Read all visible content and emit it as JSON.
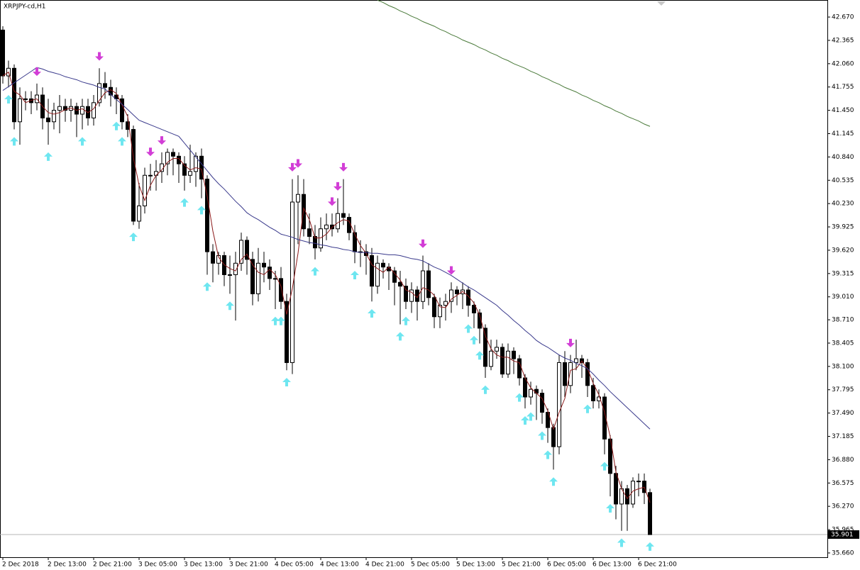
{
  "chart_data": {
    "type": "candlestick",
    "title": "XRPJPY-cd,H1",
    "categories": [
      "2 Dec 2018",
      null,
      null,
      null,
      null,
      null,
      null,
      null,
      "2 Dec 13:00",
      null,
      null,
      null,
      null,
      null,
      null,
      null,
      "2 Dec 21:00",
      null,
      null,
      null,
      null,
      null,
      null,
      null,
      "3 Dec 05:00",
      null,
      null,
      null,
      null,
      null,
      null,
      null,
      "3 Dec 13:00",
      null,
      null,
      null,
      null,
      null,
      null,
      null,
      "3 Dec 21:00",
      null,
      null,
      null,
      null,
      null,
      null,
      null,
      "4 Dec 05:00",
      null,
      null,
      null,
      null,
      null,
      null,
      null,
      "4 Dec 13:00",
      null,
      null,
      null,
      null,
      null,
      null,
      null,
      "4 Dec 21:00",
      null,
      null,
      null,
      null,
      null,
      null,
      null,
      "5 Dec 05:00",
      null,
      null,
      null,
      null,
      null,
      null,
      null,
      "5 Dec 13:00",
      null,
      null,
      null,
      null,
      null,
      null,
      null,
      "5 Dec 21:00",
      null,
      null,
      null,
      null,
      null,
      null,
      null,
      "6 Dec 05:00",
      null,
      null,
      null,
      null,
      null,
      null,
      null,
      "6 Dec 13:00",
      null,
      null,
      null,
      null,
      null,
      null,
      null,
      "6 Dec 21:00",
      null,
      null
    ],
    "open": [
      42.5,
      41.9,
      42.0,
      41.3,
      41.6,
      41.6,
      41.55,
      41.65,
      41.35,
      41.3,
      41.45,
      41.5,
      41.45,
      41.5,
      41.4,
      41.5,
      41.35,
      41.55,
      41.8,
      41.75,
      41.65,
      41.6,
      41.3,
      41.2,
      40.0,
      40.2,
      40.6,
      40.6,
      40.65,
      40.75,
      40.9,
      40.85,
      40.75,
      40.6,
      40.65,
      40.85,
      40.55,
      39.6,
      39.45,
      39.55,
      39.3,
      39.3,
      39.45,
      39.75,
      39.5,
      39.05,
      39.45,
      39.4,
      39.25,
      39.25,
      38.95,
      38.15,
      40.25,
      40.35,
      39.9,
      39.8,
      39.65,
      39.9,
      39.95,
      39.9,
      40.1,
      40.05,
      39.85,
      39.6,
      39.6,
      39.55,
      39.15,
      39.45,
      39.4,
      39.35,
      39.2,
      39.15,
      38.95,
      39.1,
      38.95,
      39.35,
      39.0,
      38.75,
      38.9,
      38.95,
      39.1,
      39.05,
      39.1,
      38.9,
      38.8,
      38.6,
      38.1,
      38.3,
      38.35,
      38.0,
      38.3,
      38.2,
      37.95,
      37.7,
      37.8,
      37.75,
      37.5,
      37.3,
      37.05,
      38.15,
      37.85,
      38.15,
      38.2,
      38.15,
      37.85,
      37.65,
      37.7,
      37.15,
      36.7,
      36.3,
      36.5,
      36.3,
      36.6,
      36.6,
      36.45
    ],
    "high": [
      42.55,
      42.1,
      42.05,
      41.75,
      41.7,
      41.7,
      41.8,
      41.75,
      41.6,
      41.55,
      41.65,
      41.6,
      41.6,
      41.55,
      41.6,
      41.6,
      41.65,
      42.0,
      41.95,
      41.85,
      41.75,
      41.65,
      41.4,
      41.25,
      40.5,
      40.7,
      40.75,
      40.8,
      40.9,
      40.95,
      40.95,
      40.9,
      40.85,
      41.0,
      40.9,
      40.95,
      40.6,
      39.7,
      39.6,
      39.6,
      39.55,
      39.6,
      39.85,
      39.8,
      39.6,
      39.65,
      39.6,
      39.5,
      39.35,
      39.4,
      39.05,
      40.55,
      40.6,
      40.55,
      40.1,
      39.95,
      40.05,
      40.1,
      40.1,
      40.3,
      40.55,
      40.1,
      39.95,
      39.75,
      39.7,
      39.65,
      39.55,
      39.5,
      39.45,
      39.4,
      39.35,
      39.25,
      39.2,
      39.15,
      39.55,
      39.45,
      39.05,
      39.0,
      39.05,
      39.2,
      39.15,
      39.2,
      39.15,
      38.95,
      38.85,
      38.65,
      38.45,
      38.45,
      38.4,
      38.4,
      38.35,
      38.25,
      38.0,
      37.9,
      37.85,
      37.8,
      37.55,
      37.35,
      38.25,
      38.3,
      38.25,
      38.45,
      38.25,
      38.2,
      37.95,
      37.8,
      37.75,
      37.2,
      36.8,
      36.6,
      36.55,
      36.65,
      36.7,
      36.7,
      36.5
    ],
    "low": [
      41.8,
      41.75,
      41.2,
      41.0,
      41.45,
      41.4,
      41.45,
      41.2,
      41.0,
      41.2,
      41.15,
      41.3,
      41.3,
      41.1,
      41.2,
      41.25,
      41.25,
      41.5,
      41.6,
      41.5,
      41.4,
      41.2,
      41.1,
      39.95,
      39.9,
      40.1,
      40.4,
      40.4,
      40.5,
      40.6,
      40.6,
      40.5,
      40.4,
      40.5,
      40.45,
      40.3,
      39.3,
      39.2,
      39.3,
      39.15,
      39.05,
      38.7,
      39.35,
      39.3,
      38.9,
      38.95,
      39.2,
      39.1,
      38.85,
      38.85,
      38.05,
      38.0,
      39.7,
      39.8,
      39.7,
      39.5,
      39.6,
      39.75,
      39.8,
      39.85,
      39.95,
      39.75,
      39.45,
      39.4,
      39.3,
      38.95,
      39.05,
      39.25,
      39.1,
      38.9,
      38.65,
      38.85,
      38.8,
      38.7,
      38.85,
      38.9,
      38.6,
      38.6,
      38.7,
      38.8,
      38.9,
      38.85,
      38.75,
      38.6,
      38.4,
      37.95,
      38.05,
      38.2,
      37.95,
      37.95,
      38.0,
      37.85,
      37.55,
      37.6,
      37.4,
      37.35,
      37.1,
      36.75,
      36.95,
      37.7,
      37.75,
      38.05,
      37.95,
      37.7,
      37.55,
      37.55,
      36.95,
      36.4,
      36.1,
      35.95,
      35.95,
      36.25,
      36.4,
      36.3,
      35.9
    ],
    "close": [
      41.9,
      42.0,
      41.3,
      41.6,
      41.6,
      41.55,
      41.65,
      41.35,
      41.3,
      41.45,
      41.5,
      41.45,
      41.5,
      41.4,
      41.5,
      41.35,
      41.55,
      41.8,
      41.75,
      41.65,
      41.6,
      41.3,
      41.2,
      40.0,
      40.2,
      40.6,
      40.6,
      40.65,
      40.75,
      40.9,
      40.85,
      40.75,
      40.6,
      40.65,
      40.85,
      40.55,
      39.6,
      39.45,
      39.55,
      39.3,
      39.3,
      39.45,
      39.75,
      39.5,
      39.05,
      39.45,
      39.4,
      39.25,
      39.25,
      38.95,
      38.15,
      40.25,
      40.35,
      39.9,
      39.8,
      39.65,
      39.9,
      39.95,
      39.9,
      40.1,
      40.05,
      39.85,
      39.6,
      39.6,
      39.55,
      39.15,
      39.45,
      39.4,
      39.35,
      39.2,
      39.15,
      38.95,
      39.1,
      38.95,
      39.35,
      39.0,
      38.75,
      38.9,
      38.95,
      39.1,
      39.05,
      39.1,
      38.9,
      38.8,
      38.6,
      38.1,
      38.3,
      38.35,
      38.0,
      38.3,
      38.2,
      37.95,
      37.7,
      37.8,
      37.75,
      37.5,
      37.3,
      37.05,
      38.15,
      37.85,
      38.15,
      38.2,
      38.15,
      37.85,
      37.65,
      37.7,
      37.15,
      36.7,
      36.3,
      36.5,
      36.3,
      36.6,
      36.6,
      36.45,
      35.9
    ],
    "up_color": "#ffffff",
    "down_color": "#000000",
    "lines": [
      {
        "color": "#8b1a1a",
        "values": [
          41.9,
          41.95,
          41.7,
          41.65,
          41.55,
          41.58,
          41.6,
          41.5,
          41.42,
          41.4,
          41.42,
          41.46,
          41.48,
          41.45,
          41.47,
          41.42,
          41.47,
          41.58,
          41.68,
          41.72,
          41.67,
          41.52,
          41.37,
          40.83,
          40.47,
          40.27,
          40.47,
          40.6,
          40.67,
          40.77,
          40.82,
          40.82,
          40.73,
          40.67,
          40.7,
          40.68,
          40.33,
          39.87,
          39.53,
          39.43,
          39.38,
          39.35,
          39.5,
          39.57,
          39.43,
          39.33,
          39.3,
          39.37,
          39.3,
          39.15,
          38.78,
          39.12,
          39.58,
          40.17,
          40.02,
          39.78,
          39.78,
          39.83,
          39.92,
          39.98,
          40.02,
          40.0,
          39.83,
          39.68,
          39.58,
          39.43,
          39.38,
          39.33,
          39.4,
          39.32,
          39.23,
          39.1,
          39.07,
          39.0,
          39.13,
          39.1,
          39.03,
          38.88,
          38.87,
          38.98,
          39.03,
          39.08,
          39.02,
          38.93,
          38.77,
          38.5,
          38.33,
          38.25,
          38.22,
          38.22,
          38.17,
          38.15,
          37.95,
          37.82,
          37.75,
          37.68,
          37.52,
          37.28,
          37.5,
          37.68,
          38.05,
          38.07,
          38.17,
          38.07,
          37.88,
          37.73,
          37.5,
          37.18,
          36.72,
          36.5,
          36.37,
          36.47,
          36.5,
          36.52,
          36.32
        ]
      },
      {
        "color": "#3a3a8c",
        "values": [
          41.71,
          41.76,
          41.81,
          41.86,
          41.91,
          41.96,
          42.01,
          41.99,
          41.96,
          41.94,
          41.92,
          41.89,
          41.87,
          41.85,
          41.82,
          41.8,
          41.78,
          41.75,
          41.73,
          41.66,
          41.59,
          41.53,
          41.46,
          41.39,
          41.32,
          41.29,
          41.26,
          41.23,
          41.2,
          41.17,
          41.14,
          41.11,
          41.02,
          40.93,
          40.84,
          40.75,
          40.66,
          40.57,
          40.49,
          40.42,
          40.34,
          40.26,
          40.19,
          40.11,
          40.06,
          40.02,
          39.97,
          39.92,
          39.88,
          39.83,
          39.81,
          39.79,
          39.76,
          39.74,
          39.72,
          39.71,
          39.69,
          39.68,
          39.66,
          39.65,
          39.63,
          39.62,
          39.6,
          39.59,
          39.59,
          39.58,
          39.58,
          39.57,
          39.56,
          39.56,
          39.55,
          39.53,
          39.51,
          39.5,
          39.48,
          39.44,
          39.4,
          39.37,
          39.33,
          39.29,
          39.24,
          39.19,
          39.14,
          39.1,
          39.05,
          39.0,
          38.95,
          38.9,
          38.83,
          38.77,
          38.7,
          38.64,
          38.57,
          38.51,
          38.44,
          38.39,
          38.35,
          38.3,
          38.25,
          38.21,
          38.18,
          38.14,
          38.11,
          38.07,
          38.0,
          37.92,
          37.85,
          37.77,
          37.7,
          37.63,
          37.56,
          37.49,
          37.42,
          37.35,
          37.28
        ]
      },
      {
        "color": "#4a7a3a",
        "values": [
          null,
          null,
          null,
          null,
          null,
          null,
          null,
          null,
          null,
          null,
          null,
          null,
          null,
          null,
          null,
          null,
          null,
          null,
          null,
          null,
          null,
          null,
          null,
          null,
          null,
          null,
          null,
          null,
          null,
          null,
          null,
          null,
          null,
          null,
          null,
          null,
          null,
          null,
          null,
          null,
          null,
          null,
          null,
          null,
          null,
          null,
          null,
          null,
          null,
          null,
          null,
          null,
          null,
          null,
          null,
          null,
          null,
          null,
          null,
          null,
          null,
          null,
          null,
          null,
          null,
          null,
          42.89,
          42.86,
          42.82,
          42.79,
          42.75,
          42.72,
          42.68,
          42.65,
          42.61,
          42.58,
          42.55,
          42.51,
          42.48,
          42.44,
          42.41,
          42.37,
          42.34,
          42.31,
          42.27,
          42.24,
          42.2,
          42.17,
          42.13,
          42.1,
          42.06,
          42.03,
          42.0,
          41.96,
          41.93,
          41.89,
          41.86,
          41.82,
          41.79,
          41.75,
          41.72,
          41.69,
          41.65,
          41.62,
          41.58,
          41.55,
          41.51,
          41.48,
          41.44,
          41.41,
          41.37,
          41.34,
          41.31,
          41.27,
          41.24
        ]
      }
    ],
    "up_arrows": {
      "color": "#6ee6f0",
      "x": [
        1,
        2,
        8,
        14,
        20,
        21,
        23,
        32,
        35,
        36,
        40,
        48,
        49,
        50,
        55,
        62,
        65,
        70,
        71,
        82,
        83,
        84,
        85,
        91,
        92,
        93,
        95,
        96,
        97,
        103,
        106,
        107,
        109,
        114
      ],
      "values": [
        41.65,
        41.1,
        40.9,
        41.1,
        41.3,
        41.1,
        39.85,
        40.3,
        40.2,
        39.2,
        38.95,
        38.75,
        38.75,
        37.95,
        39.4,
        39.35,
        38.85,
        38.55,
        38.75,
        38.65,
        38.5,
        38.3,
        37.85,
        37.75,
        37.45,
        37.5,
        37.25,
        37.0,
        36.65,
        37.6,
        36.85,
        36.3,
        35.85,
        35.8
      ]
    },
    "down_arrows": {
      "color": "#d23ed6",
      "x": [
        6,
        17,
        26,
        28,
        51,
        52,
        58,
        59,
        60,
        74,
        79,
        100
      ],
      "values": [
        41.9,
        42.1,
        40.85,
        41.0,
        40.65,
        40.7,
        40.2,
        40.4,
        40.65,
        39.65,
        39.3,
        38.35
      ]
    },
    "last_price": {
      "value": 35.901,
      "label": "35.901"
    },
    "ylim": [
      35.604,
      42.893
    ],
    "yticks": [
      {
        "value": 42.67,
        "label": "42.670"
      },
      {
        "value": 42.365,
        "label": "42.365"
      },
      {
        "value": 42.06,
        "label": "42.060"
      },
      {
        "value": 41.755,
        "label": "41.755"
      },
      {
        "value": 41.45,
        "label": "41.450"
      },
      {
        "value": 41.145,
        "label": "41.145"
      },
      {
        "value": 40.84,
        "label": "40.840"
      },
      {
        "value": 40.535,
        "label": "40.535"
      },
      {
        "value": 40.23,
        "label": "40.230"
      },
      {
        "value": 39.925,
        "label": "39.925"
      },
      {
        "value": 39.62,
        "label": "39.620"
      },
      {
        "value": 39.315,
        "label": "39.315"
      },
      {
        "value": 39.01,
        "label": "39.010"
      },
      {
        "value": 38.71,
        "label": "38.710"
      },
      {
        "value": 38.405,
        "label": "38.405"
      },
      {
        "value": 38.1,
        "label": "38.100"
      },
      {
        "value": 37.795,
        "label": "37.795"
      },
      {
        "value": 37.49,
        "label": "37.490"
      },
      {
        "value": 37.185,
        "label": "37.185"
      },
      {
        "value": 36.88,
        "label": "36.880"
      },
      {
        "value": 36.575,
        "label": "36.575"
      },
      {
        "value": 36.27,
        "label": "36.270"
      },
      {
        "value": 35.965,
        "label": "35.965"
      },
      {
        "value": 35.66,
        "label": "35.660"
      }
    ]
  }
}
